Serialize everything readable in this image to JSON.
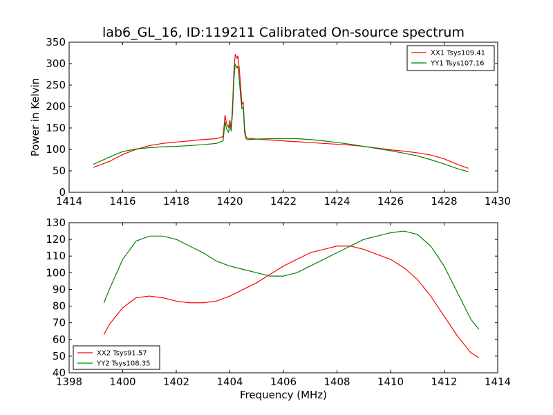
{
  "figure": {
    "title": "lab6_GL_16, ID:119211 Calibrated On-source spectrum"
  },
  "chart_data": [
    {
      "type": "line",
      "title": "lab6_GL_16, ID:119211 Calibrated On-source spectrum",
      "xlabel": "",
      "ylabel": "Power in Kelvin",
      "xlim": [
        1414,
        1430
      ],
      "ylim": [
        0,
        350
      ],
      "xticks": [
        1414,
        1416,
        1418,
        1420,
        1422,
        1424,
        1426,
        1428,
        1430
      ],
      "yticks": [
        0,
        50,
        100,
        150,
        200,
        250,
        300,
        350
      ],
      "grid": false,
      "legend_position": "top-right",
      "series": [
        {
          "name": "XX1 Tsys109.41",
          "color": "#ff0000",
          "x": [
            1414.9,
            1415.5,
            1416.0,
            1416.5,
            1417.0,
            1417.5,
            1418.0,
            1418.5,
            1419.0,
            1419.5,
            1419.75,
            1419.82,
            1419.88,
            1419.95,
            1420.0,
            1420.05,
            1420.1,
            1420.15,
            1420.2,
            1420.27,
            1420.3,
            1420.35,
            1420.4,
            1420.45,
            1420.5,
            1420.55,
            1420.6,
            1420.62,
            1420.7,
            1421.0,
            1421.5,
            1422.0,
            1422.5,
            1423.0,
            1423.5,
            1424.0,
            1424.5,
            1425.0,
            1425.5,
            1426.0,
            1426.5,
            1427.0,
            1427.5,
            1428.0,
            1428.5,
            1428.9
          ],
          "values": [
            58,
            72,
            88,
            100,
            109,
            114,
            117,
            120,
            123,
            125,
            130,
            180,
            160,
            152,
            168,
            150,
            200,
            280,
            322,
            312,
            318,
            290,
            250,
            205,
            210,
            150,
            130,
            128,
            126,
            124,
            122,
            120,
            118,
            116,
            114,
            112,
            110,
            107,
            103,
            99,
            96,
            92,
            87,
            78,
            65,
            56
          ]
        },
        {
          "name": "YY1 Tsys107.16",
          "color": "#008000",
          "x": [
            1414.9,
            1415.5,
            1416.0,
            1416.5,
            1417.0,
            1417.5,
            1418.0,
            1418.5,
            1419.0,
            1419.5,
            1419.75,
            1419.82,
            1419.88,
            1419.95,
            1420.0,
            1420.05,
            1420.1,
            1420.15,
            1420.2,
            1420.27,
            1420.3,
            1420.35,
            1420.4,
            1420.45,
            1420.5,
            1420.55,
            1420.6,
            1420.62,
            1420.7,
            1421.0,
            1421.5,
            1422.0,
            1422.5,
            1423.0,
            1423.5,
            1424.0,
            1424.5,
            1425.0,
            1425.5,
            1426.0,
            1426.5,
            1427.0,
            1427.5,
            1428.0,
            1428.5,
            1428.9
          ],
          "values": [
            65,
            82,
            95,
            101,
            104,
            106,
            107,
            109,
            111,
            114,
            120,
            165,
            148,
            140,
            158,
            142,
            185,
            262,
            298,
            290,
            295,
            265,
            225,
            195,
            198,
            140,
            126,
            124,
            123,
            124,
            125,
            125,
            125,
            123,
            120,
            116,
            112,
            107,
            102,
            97,
            91,
            85,
            76,
            66,
            55,
            48
          ]
        }
      ]
    },
    {
      "type": "line",
      "title": "",
      "xlabel": "Frequency (MHz)",
      "ylabel": "",
      "xlim": [
        1398,
        1414
      ],
      "ylim": [
        40,
        130
      ],
      "xticks": [
        1398,
        1400,
        1402,
        1404,
        1406,
        1408,
        1410,
        1412,
        1414
      ],
      "yticks": [
        40,
        50,
        60,
        70,
        80,
        90,
        100,
        110,
        120,
        130
      ],
      "grid": false,
      "legend_position": "lower-left",
      "series": [
        {
          "name": "XX2 Tsys91.57",
          "color": "#ff0000",
          "x": [
            1399.3,
            1399.5,
            1400.0,
            1400.5,
            1401.0,
            1401.5,
            1402.0,
            1402.5,
            1403.0,
            1403.5,
            1404.0,
            1404.5,
            1405.0,
            1405.5,
            1406.0,
            1406.5,
            1407.0,
            1407.5,
            1408.0,
            1408.5,
            1409.0,
            1409.5,
            1410.0,
            1410.5,
            1411.0,
            1411.5,
            1412.0,
            1412.5,
            1413.0,
            1413.3
          ],
          "values": [
            63,
            69,
            79,
            85,
            86,
            85,
            83,
            82,
            82,
            83,
            86,
            90,
            94,
            99,
            104,
            108,
            112,
            114,
            116,
            116,
            114,
            111,
            108,
            103,
            96,
            86,
            74,
            62,
            52,
            49
          ]
        },
        {
          "name": "YY2 Tsys108.35",
          "color": "#008000",
          "x": [
            1399.3,
            1399.5,
            1400.0,
            1400.5,
            1401.0,
            1401.5,
            1402.0,
            1402.5,
            1403.0,
            1403.5,
            1404.0,
            1404.5,
            1405.0,
            1405.5,
            1406.0,
            1406.5,
            1407.0,
            1407.5,
            1408.0,
            1408.5,
            1409.0,
            1409.5,
            1410.0,
            1410.5,
            1411.0,
            1411.5,
            1412.0,
            1412.5,
            1413.0,
            1413.3
          ],
          "values": [
            82,
            90,
            108,
            119,
            122,
            122,
            120,
            116,
            112,
            107,
            104,
            102,
            100,
            98,
            98,
            100,
            104,
            108,
            112,
            116,
            120,
            122,
            124,
            125,
            123,
            116,
            104,
            88,
            72,
            66
          ]
        }
      ]
    }
  ]
}
